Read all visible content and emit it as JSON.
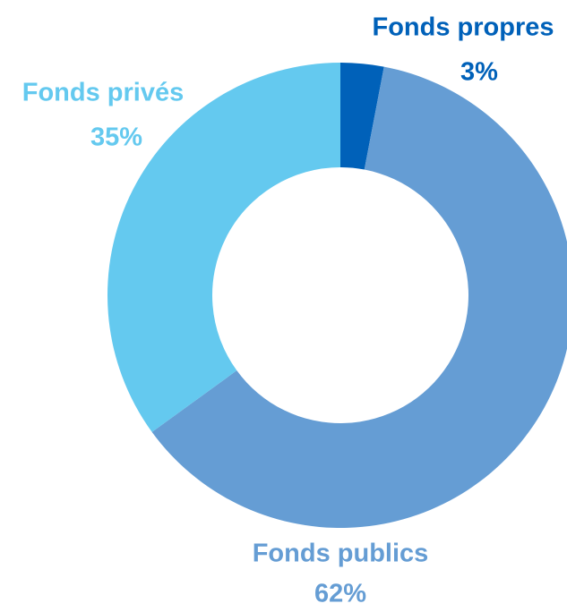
{
  "chart_data": {
    "type": "pie",
    "categories": [
      "Fonds propres",
      "Fonds publics",
      "Fonds privés"
    ],
    "values": [
      3,
      62,
      35
    ],
    "value_labels": [
      "3%",
      "62%",
      "35%"
    ],
    "colors": [
      "#0061b9",
      "#659dd4",
      "#64c9ef"
    ]
  }
}
